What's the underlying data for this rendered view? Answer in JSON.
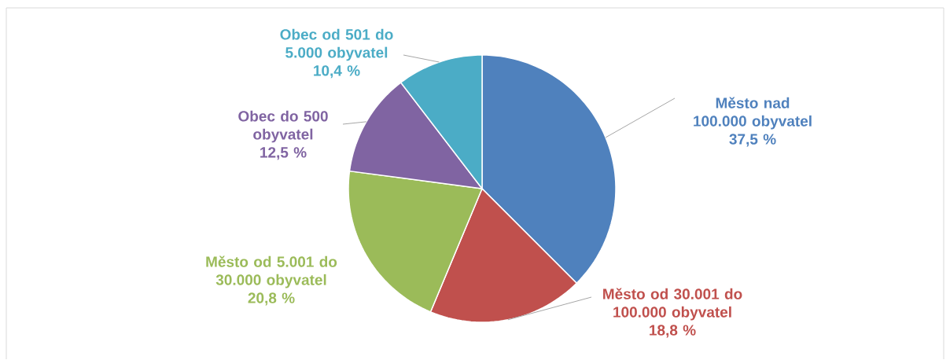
{
  "chart_data": {
    "type": "pie",
    "categories": [
      "Město nad 100.000 obyvatel",
      "Město od 30.001 do 100.000 obyvatel",
      "Město od 5.001 do 30.000 obyvatel",
      "Obec do 500 obyvatel",
      "Obec od 501 do 5.000 obyvatel"
    ],
    "values": [
      37.5,
      18.8,
      20.8,
      12.5,
      10.4
    ],
    "value_labels": [
      "37,5 %",
      "18,8 %",
      "20,8 %",
      "12,5 %",
      "10,4 %"
    ],
    "colors": [
      "#4f81bd",
      "#c0504d",
      "#9bbb59",
      "#8064a2",
      "#4bacc6"
    ]
  }
}
